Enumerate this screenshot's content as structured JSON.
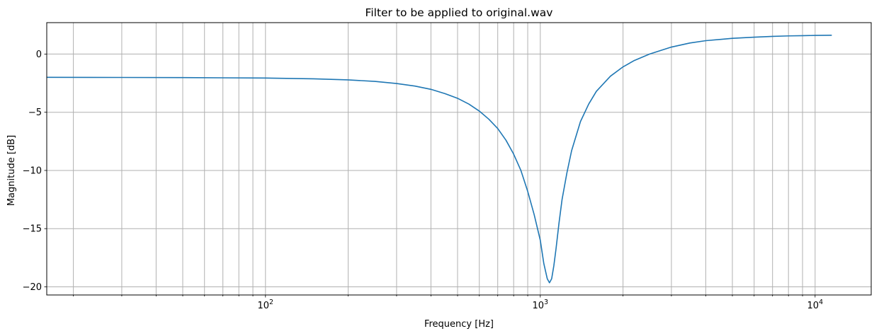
{
  "chart_data": {
    "type": "line",
    "title": "Filter to be applied to original.wav",
    "xlabel": "Frequency [Hz]",
    "ylabel": "Magnitude [dB]",
    "x_scale": "log",
    "xlim": [
      16,
      16000
    ],
    "ylim": [
      -20.7,
      2.7
    ],
    "grid": "on (major and minor)",
    "x_tick_labels": [
      {
        "value": 100,
        "base": "10",
        "exp": "2"
      },
      {
        "value": 1000,
        "base": "10",
        "exp": "3"
      },
      {
        "value": 10000,
        "base": "10",
        "exp": "4"
      }
    ],
    "y_ticks": [
      0,
      -5,
      -10,
      -15,
      -20
    ],
    "y_tick_labels": [
      "0",
      "−5",
      "−10",
      "−15",
      "−20"
    ],
    "line_color": "#1f77b4",
    "series": [
      {
        "x": [
          16,
          30,
          50,
          70,
          100,
          150,
          200,
          250,
          300,
          350,
          400,
          450,
          500,
          550,
          600,
          650,
          700,
          750,
          800,
          850,
          900,
          950,
          1000,
          1030,
          1060,
          1080,
          1100,
          1120,
          1140,
          1170,
          1200,
          1250,
          1300,
          1400,
          1500,
          1600,
          1800,
          2000,
          2200,
          2500,
          3000,
          3500,
          4000,
          5000,
          6000,
          7000,
          8000,
          9000,
          10000,
          11500
        ],
        "y": [
          -2.0,
          -2.01,
          -2.02,
          -2.04,
          -2.06,
          -2.13,
          -2.22,
          -2.35,
          -2.53,
          -2.75,
          -3.03,
          -3.4,
          -3.8,
          -4.3,
          -4.9,
          -5.6,
          -6.4,
          -7.4,
          -8.6,
          -10.0,
          -11.8,
          -13.8,
          -16.0,
          -18.0,
          -19.3,
          -19.65,
          -19.3,
          -18.2,
          -16.8,
          -14.5,
          -12.5,
          -10.2,
          -8.3,
          -5.8,
          -4.3,
          -3.2,
          -1.9,
          -1.1,
          -0.55,
          0.0,
          0.6,
          0.95,
          1.15,
          1.35,
          1.45,
          1.52,
          1.56,
          1.58,
          1.6,
          1.62
        ]
      }
    ]
  }
}
